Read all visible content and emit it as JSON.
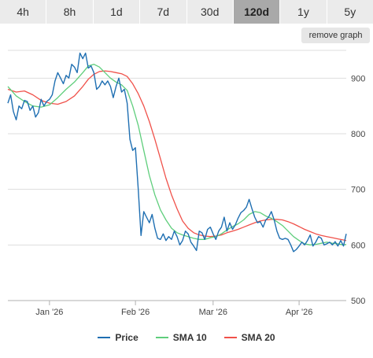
{
  "tabs": [
    {
      "label": "4h",
      "active": false
    },
    {
      "label": "8h",
      "active": false
    },
    {
      "label": "1d",
      "active": false
    },
    {
      "label": "7d",
      "active": false
    },
    {
      "label": "30d",
      "active": false
    },
    {
      "label": "120d",
      "active": true
    },
    {
      "label": "1y",
      "active": false
    },
    {
      "label": "5y",
      "active": false
    }
  ],
  "remove_graph_label": "remove graph",
  "chart_data": {
    "type": "line",
    "ylim": [
      500,
      950
    ],
    "y_ticks": [
      900,
      800,
      700,
      600,
      500
    ],
    "x_ticks": [
      {
        "label": "Jan '26",
        "x": 10
      },
      {
        "label": "Feb '26",
        "x": 41
      },
      {
        "label": "Mar '26",
        "x": 69
      },
      {
        "label": "Apr '26",
        "x": 100
      }
    ],
    "xlim": [
      -5,
      117
    ],
    "grid": true,
    "legend_position": "bottom",
    "series": [
      {
        "name": "Price",
        "color": "#1f6fb2",
        "values": [
          {
            "x": -5,
            "y": 855
          },
          {
            "x": -4,
            "y": 870
          },
          {
            "x": -3,
            "y": 840
          },
          {
            "x": -2,
            "y": 825
          },
          {
            "x": -1,
            "y": 850
          },
          {
            "x": 0,
            "y": 845
          },
          {
            "x": 1,
            "y": 860
          },
          {
            "x": 2,
            "y": 858
          },
          {
            "x": 3,
            "y": 842
          },
          {
            "x": 4,
            "y": 850
          },
          {
            "x": 5,
            "y": 830
          },
          {
            "x": 6,
            "y": 838
          },
          {
            "x": 7,
            "y": 862
          },
          {
            "x": 8,
            "y": 850
          },
          {
            "x": 9,
            "y": 858
          },
          {
            "x": 10,
            "y": 862
          },
          {
            "x": 11,
            "y": 870
          },
          {
            "x": 12,
            "y": 895
          },
          {
            "x": 13,
            "y": 910
          },
          {
            "x": 14,
            "y": 900
          },
          {
            "x": 15,
            "y": 890
          },
          {
            "x": 16,
            "y": 905
          },
          {
            "x": 17,
            "y": 900
          },
          {
            "x": 18,
            "y": 925
          },
          {
            "x": 19,
            "y": 920
          },
          {
            "x": 20,
            "y": 910
          },
          {
            "x": 21,
            "y": 945
          },
          {
            "x": 22,
            "y": 935
          },
          {
            "x": 23,
            "y": 945
          },
          {
            "x": 24,
            "y": 918
          },
          {
            "x": 25,
            "y": 922
          },
          {
            "x": 26,
            "y": 910
          },
          {
            "x": 27,
            "y": 880
          },
          {
            "x": 28,
            "y": 885
          },
          {
            "x": 29,
            "y": 895
          },
          {
            "x": 30,
            "y": 888
          },
          {
            "x": 31,
            "y": 895
          },
          {
            "x": 32,
            "y": 885
          },
          {
            "x": 33,
            "y": 865
          },
          {
            "x": 34,
            "y": 885
          },
          {
            "x": 35,
            "y": 900
          },
          {
            "x": 36,
            "y": 875
          },
          {
            "x": 37,
            "y": 880
          },
          {
            "x": 38,
            "y": 855
          },
          {
            "x": 39,
            "y": 790
          },
          {
            "x": 40,
            "y": 770
          },
          {
            "x": 41,
            "y": 775
          },
          {
            "x": 42,
            "y": 700
          },
          {
            "x": 43,
            "y": 617
          },
          {
            "x": 44,
            "y": 660
          },
          {
            "x": 45,
            "y": 650
          },
          {
            "x": 46,
            "y": 640
          },
          {
            "x": 47,
            "y": 655
          },
          {
            "x": 48,
            "y": 630
          },
          {
            "x": 49,
            "y": 612
          },
          {
            "x": 50,
            "y": 610
          },
          {
            "x": 51,
            "y": 620
          },
          {
            "x": 52,
            "y": 608
          },
          {
            "x": 53,
            "y": 615
          },
          {
            "x": 54,
            "y": 610
          },
          {
            "x": 55,
            "y": 625
          },
          {
            "x": 56,
            "y": 615
          },
          {
            "x": 57,
            "y": 600
          },
          {
            "x": 58,
            "y": 608
          },
          {
            "x": 59,
            "y": 625
          },
          {
            "x": 60,
            "y": 620
          },
          {
            "x": 61,
            "y": 605
          },
          {
            "x": 62,
            "y": 598
          },
          {
            "x": 63,
            "y": 590
          },
          {
            "x": 64,
            "y": 625
          },
          {
            "x": 65,
            "y": 622
          },
          {
            "x": 66,
            "y": 610
          },
          {
            "x": 67,
            "y": 628
          },
          {
            "x": 68,
            "y": 632
          },
          {
            "x": 69,
            "y": 620
          },
          {
            "x": 70,
            "y": 610
          },
          {
            "x": 71,
            "y": 625
          },
          {
            "x": 72,
            "y": 632
          },
          {
            "x": 73,
            "y": 650
          },
          {
            "x": 74,
            "y": 625
          },
          {
            "x": 75,
            "y": 640
          },
          {
            "x": 76,
            "y": 628
          },
          {
            "x": 77,
            "y": 636
          },
          {
            "x": 78,
            "y": 648
          },
          {
            "x": 79,
            "y": 658
          },
          {
            "x": 80,
            "y": 662
          },
          {
            "x": 81,
            "y": 668
          },
          {
            "x": 82,
            "y": 682
          },
          {
            "x": 83,
            "y": 665
          },
          {
            "x": 84,
            "y": 650
          },
          {
            "x": 85,
            "y": 640
          },
          {
            "x": 86,
            "y": 642
          },
          {
            "x": 87,
            "y": 632
          },
          {
            "x": 88,
            "y": 645
          },
          {
            "x": 89,
            "y": 650
          },
          {
            "x": 90,
            "y": 660
          },
          {
            "x": 91,
            "y": 645
          },
          {
            "x": 92,
            "y": 625
          },
          {
            "x": 93,
            "y": 612
          },
          {
            "x": 94,
            "y": 610
          },
          {
            "x": 95,
            "y": 612
          },
          {
            "x": 96,
            "y": 610
          },
          {
            "x": 97,
            "y": 600
          },
          {
            "x": 98,
            "y": 588
          },
          {
            "x": 99,
            "y": 592
          },
          {
            "x": 100,
            "y": 598
          },
          {
            "x": 101,
            "y": 605
          },
          {
            "x": 102,
            "y": 600
          },
          {
            "x": 103,
            "y": 608
          },
          {
            "x": 104,
            "y": 618
          },
          {
            "x": 105,
            "y": 598
          },
          {
            "x": 106,
            "y": 605
          },
          {
            "x": 107,
            "y": 615
          },
          {
            "x": 108,
            "y": 612
          },
          {
            "x": 109,
            "y": 600
          },
          {
            "x": 110,
            "y": 602
          },
          {
            "x": 111,
            "y": 605
          },
          {
            "x": 112,
            "y": 600
          },
          {
            "x": 113,
            "y": 606
          },
          {
            "x": 114,
            "y": 598
          },
          {
            "x": 115,
            "y": 608
          },
          {
            "x": 116,
            "y": 598
          },
          {
            "x": 117,
            "y": 620
          }
        ]
      },
      {
        "name": "SMA 10",
        "color": "#5fce7c",
        "values": [
          {
            "x": -5,
            "y": 885
          },
          {
            "x": -2,
            "y": 868
          },
          {
            "x": 1,
            "y": 858
          },
          {
            "x": 4,
            "y": 850
          },
          {
            "x": 7,
            "y": 848
          },
          {
            "x": 10,
            "y": 852
          },
          {
            "x": 13,
            "y": 865
          },
          {
            "x": 16,
            "y": 880
          },
          {
            "x": 19,
            "y": 893
          },
          {
            "x": 22,
            "y": 910
          },
          {
            "x": 24,
            "y": 922
          },
          {
            "x": 26,
            "y": 925
          },
          {
            "x": 28,
            "y": 920
          },
          {
            "x": 30,
            "y": 910
          },
          {
            "x": 32,
            "y": 900
          },
          {
            "x": 34,
            "y": 893
          },
          {
            "x": 36,
            "y": 888
          },
          {
            "x": 38,
            "y": 878
          },
          {
            "x": 40,
            "y": 850
          },
          {
            "x": 42,
            "y": 815
          },
          {
            "x": 44,
            "y": 770
          },
          {
            "x": 46,
            "y": 725
          },
          {
            "x": 48,
            "y": 690
          },
          {
            "x": 50,
            "y": 663
          },
          {
            "x": 52,
            "y": 645
          },
          {
            "x": 54,
            "y": 630
          },
          {
            "x": 56,
            "y": 622
          },
          {
            "x": 58,
            "y": 618
          },
          {
            "x": 60,
            "y": 615
          },
          {
            "x": 62,
            "y": 612
          },
          {
            "x": 64,
            "y": 610
          },
          {
            "x": 66,
            "y": 610
          },
          {
            "x": 68,
            "y": 613
          },
          {
            "x": 70,
            "y": 615
          },
          {
            "x": 72,
            "y": 620
          },
          {
            "x": 74,
            "y": 627
          },
          {
            "x": 76,
            "y": 633
          },
          {
            "x": 78,
            "y": 638
          },
          {
            "x": 80,
            "y": 645
          },
          {
            "x": 82,
            "y": 655
          },
          {
            "x": 84,
            "y": 660
          },
          {
            "x": 86,
            "y": 658
          },
          {
            "x": 88,
            "y": 652
          },
          {
            "x": 90,
            "y": 648
          },
          {
            "x": 92,
            "y": 642
          },
          {
            "x": 94,
            "y": 635
          },
          {
            "x": 96,
            "y": 625
          },
          {
            "x": 98,
            "y": 615
          },
          {
            "x": 100,
            "y": 608
          },
          {
            "x": 102,
            "y": 602
          },
          {
            "x": 104,
            "y": 600
          },
          {
            "x": 106,
            "y": 601
          },
          {
            "x": 108,
            "y": 603
          },
          {
            "x": 110,
            "y": 605
          },
          {
            "x": 112,
            "y": 603
          },
          {
            "x": 114,
            "y": 602
          },
          {
            "x": 116,
            "y": 600
          },
          {
            "x": 117,
            "y": 601
          }
        ]
      },
      {
        "name": "SMA 20",
        "color": "#f0514a",
        "values": [
          {
            "x": -5,
            "y": 880
          },
          {
            "x": -2,
            "y": 875
          },
          {
            "x": 1,
            "y": 877
          },
          {
            "x": 4,
            "y": 870
          },
          {
            "x": 7,
            "y": 860
          },
          {
            "x": 10,
            "y": 855
          },
          {
            "x": 13,
            "y": 853
          },
          {
            "x": 16,
            "y": 858
          },
          {
            "x": 19,
            "y": 868
          },
          {
            "x": 22,
            "y": 885
          },
          {
            "x": 24,
            "y": 898
          },
          {
            "x": 26,
            "y": 907
          },
          {
            "x": 28,
            "y": 912
          },
          {
            "x": 30,
            "y": 913
          },
          {
            "x": 32,
            "y": 912
          },
          {
            "x": 34,
            "y": 910
          },
          {
            "x": 36,
            "y": 908
          },
          {
            "x": 38,
            "y": 903
          },
          {
            "x": 40,
            "y": 890
          },
          {
            "x": 42,
            "y": 872
          },
          {
            "x": 44,
            "y": 850
          },
          {
            "x": 46,
            "y": 822
          },
          {
            "x": 48,
            "y": 790
          },
          {
            "x": 50,
            "y": 755
          },
          {
            "x": 52,
            "y": 720
          },
          {
            "x": 54,
            "y": 690
          },
          {
            "x": 56,
            "y": 665
          },
          {
            "x": 58,
            "y": 643
          },
          {
            "x": 60,
            "y": 630
          },
          {
            "x": 62,
            "y": 622
          },
          {
            "x": 64,
            "y": 618
          },
          {
            "x": 66,
            "y": 616
          },
          {
            "x": 68,
            "y": 615
          },
          {
            "x": 70,
            "y": 616
          },
          {
            "x": 72,
            "y": 618
          },
          {
            "x": 74,
            "y": 622
          },
          {
            "x": 76,
            "y": 625
          },
          {
            "x": 78,
            "y": 628
          },
          {
            "x": 80,
            "y": 632
          },
          {
            "x": 82,
            "y": 636
          },
          {
            "x": 84,
            "y": 640
          },
          {
            "x": 86,
            "y": 643
          },
          {
            "x": 88,
            "y": 645
          },
          {
            "x": 90,
            "y": 646
          },
          {
            "x": 92,
            "y": 646
          },
          {
            "x": 94,
            "y": 645
          },
          {
            "x": 96,
            "y": 642
          },
          {
            "x": 98,
            "y": 638
          },
          {
            "x": 100,
            "y": 633
          },
          {
            "x": 102,
            "y": 628
          },
          {
            "x": 104,
            "y": 624
          },
          {
            "x": 106,
            "y": 620
          },
          {
            "x": 108,
            "y": 617
          },
          {
            "x": 110,
            "y": 615
          },
          {
            "x": 112,
            "y": 613
          },
          {
            "x": 114,
            "y": 611
          },
          {
            "x": 116,
            "y": 609
          },
          {
            "x": 117,
            "y": 608
          }
        ]
      }
    ]
  }
}
